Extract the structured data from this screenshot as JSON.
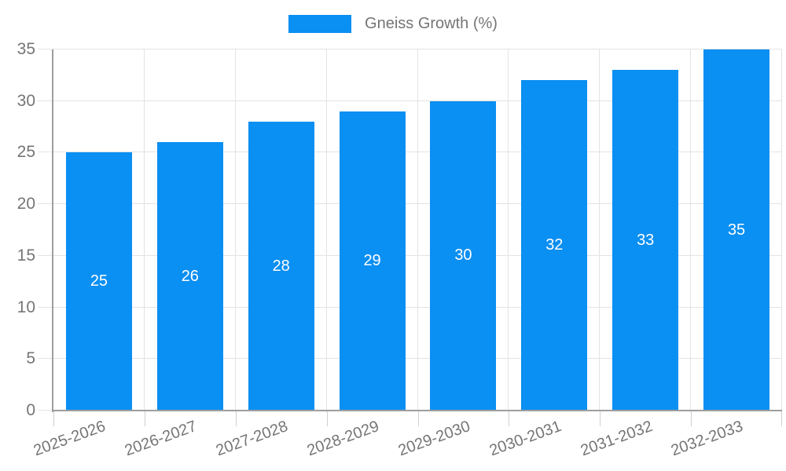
{
  "legend": {
    "label": "Gneiss Growth (%)"
  },
  "chart_data": {
    "type": "bar",
    "title": "",
    "categories": [
      "2025-2026",
      "2026-2027",
      "2027-2028",
      "2028-2029",
      "2029-2030",
      "2030-2031",
      "2031-2032",
      "2032-2033"
    ],
    "series": [
      {
        "name": "Gneiss Growth (%)",
        "values": [
          25,
          26,
          28,
          29,
          30,
          32,
          33,
          35
        ]
      }
    ],
    "xlabel": "",
    "ylabel": "",
    "ylim": [
      0,
      35
    ],
    "yticks": [
      0,
      5,
      10,
      15,
      20,
      25,
      30,
      35
    ],
    "grid": true,
    "legend_position": "top-center",
    "bar_labels_inside": true,
    "colors": {
      "bar": "#0a8ff2",
      "grid": "#e3e3e3",
      "axis": "#9e9e9e",
      "tick": "#cfcfcf",
      "text": "#757575",
      "bar_label": "#ffffff",
      "background": "#ffffff"
    }
  }
}
